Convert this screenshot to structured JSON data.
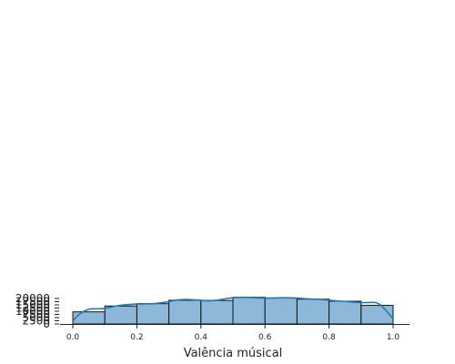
{
  "chart_data": {
    "type": "bar",
    "subtype": "histogram-with-kde",
    "xlabel": "Valência músical",
    "ylabel": "",
    "xlim": [
      0.0,
      1.0
    ],
    "ylim": [
      0,
      22000
    ],
    "x_ticks": [
      "0.0",
      "0.2",
      "0.4",
      "0.6",
      "0.8",
      "1.0"
    ],
    "y_ticks": [
      "0",
      "2500",
      "5000",
      "7500",
      "10000",
      "12500",
      "15000",
      "17500",
      "20000"
    ],
    "bins": [
      {
        "x0": 0.0,
        "x1": 0.1,
        "count": 9500
      },
      {
        "x0": 0.1,
        "x1": 0.2,
        "count": 14100
      },
      {
        "x0": 0.2,
        "x1": 0.3,
        "count": 15950
      },
      {
        "x0": 0.3,
        "x1": 0.4,
        "count": 18600
      },
      {
        "x0": 0.4,
        "x1": 0.5,
        "count": 18450
      },
      {
        "x0": 0.5,
        "x1": 0.6,
        "count": 20950
      },
      {
        "x0": 0.6,
        "x1": 0.7,
        "count": 20400
      },
      {
        "x0": 0.7,
        "x1": 0.8,
        "count": 19450
      },
      {
        "x0": 0.8,
        "x1": 0.9,
        "count": 17850
      },
      {
        "x0": 0.9,
        "x1": 1.0,
        "count": 14600
      }
    ],
    "kde": {
      "x": [
        0.0,
        0.02,
        0.05,
        0.08,
        0.1,
        0.13,
        0.16,
        0.2,
        0.23,
        0.26,
        0.3,
        0.33,
        0.36,
        0.39,
        0.42,
        0.45,
        0.48,
        0.51,
        0.54,
        0.57,
        0.6,
        0.63,
        0.66,
        0.69,
        0.72,
        0.75,
        0.78,
        0.81,
        0.84,
        0.87,
        0.9,
        0.92,
        0.945,
        0.96,
        0.98,
        1.0
      ],
      "y": [
        2300,
        7500,
        11500,
        11900,
        12200,
        13800,
        15000,
        15700,
        15800,
        16100,
        17600,
        18900,
        19200,
        18700,
        18200,
        18600,
        19900,
        20800,
        20900,
        20600,
        20300,
        20400,
        20600,
        20400,
        19900,
        19500,
        19100,
        18400,
        17800,
        17300,
        16800,
        16800,
        16800,
        15000,
        10000,
        4000
      ]
    },
    "colors": {
      "bar_fill": "#8db8da",
      "bar_edge": "#111111",
      "kde_line": "#1f77b4",
      "axis": "#222222"
    },
    "grid": false
  }
}
